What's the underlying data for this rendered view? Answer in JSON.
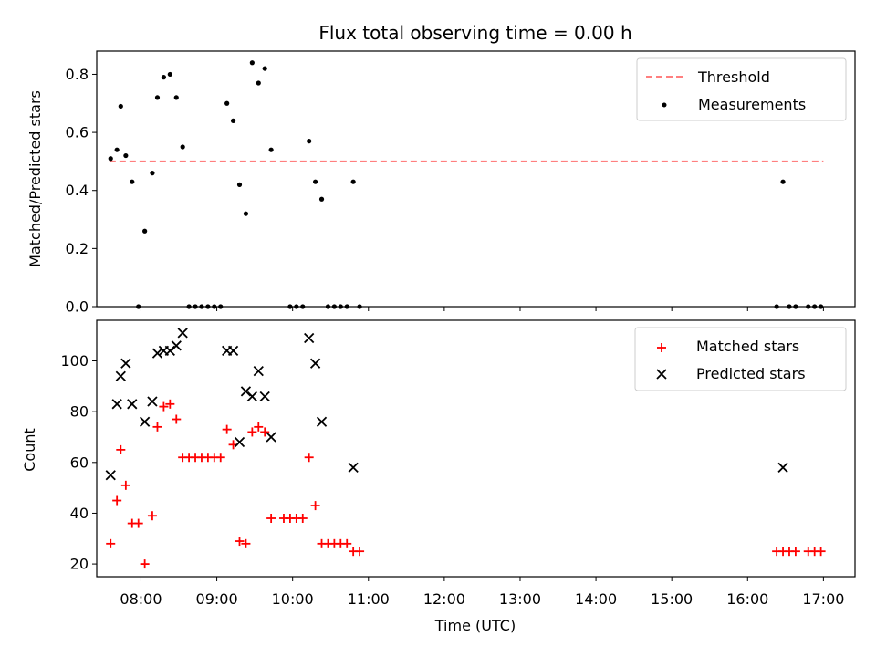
{
  "chart_data": [
    {
      "type": "scatter",
      "title": "Flux total observing time = 0.00 h",
      "xlabel": "",
      "ylabel": "Matched/Predicted stars",
      "xlim": [
        "07:25",
        "17:25"
      ],
      "ylim": [
        0,
        0.88
      ],
      "yticks": [
        "0.0",
        "0.2",
        "0.4",
        "0.6",
        "0.8"
      ],
      "legend_position": "top-right",
      "series": [
        {
          "name": "Threshold",
          "style": "dashed-line",
          "color": "#ff7f7f",
          "points": [
            [
              "07:35",
              0.5
            ],
            [
              "17:00",
              0.5
            ]
          ]
        },
        {
          "name": "Measurements",
          "style": "dot",
          "color": "#000000",
          "points": [
            [
              "07:36",
              0.51
            ],
            [
              "07:41",
              0.54
            ],
            [
              "07:44",
              0.69
            ],
            [
              "07:48",
              0.52
            ],
            [
              "07:53",
              0.43
            ],
            [
              "07:58",
              0.0
            ],
            [
              "08:03",
              0.26
            ],
            [
              "08:09",
              0.46
            ],
            [
              "08:13",
              0.72
            ],
            [
              "08:18",
              0.79
            ],
            [
              "08:23",
              0.8
            ],
            [
              "08:28",
              0.72
            ],
            [
              "08:33",
              0.55
            ],
            [
              "08:38",
              0.0
            ],
            [
              "08:43",
              0.0
            ],
            [
              "08:48",
              0.0
            ],
            [
              "08:53",
              0.0
            ],
            [
              "08:58",
              0.0
            ],
            [
              "09:03",
              0.0
            ],
            [
              "09:08",
              0.7
            ],
            [
              "09:13",
              0.64
            ],
            [
              "09:18",
              0.42
            ],
            [
              "09:23",
              0.32
            ],
            [
              "09:28",
              0.84
            ],
            [
              "09:33",
              0.77
            ],
            [
              "09:38",
              0.82
            ],
            [
              "09:43",
              0.54
            ],
            [
              "09:58",
              0.0
            ],
            [
              "10:03",
              0.0
            ],
            [
              "10:08",
              0.0
            ],
            [
              "10:13",
              0.57
            ],
            [
              "10:18",
              0.43
            ],
            [
              "10:23",
              0.37
            ],
            [
              "10:28",
              0.0
            ],
            [
              "10:33",
              0.0
            ],
            [
              "10:38",
              0.0
            ],
            [
              "10:43",
              0.0
            ],
            [
              "10:48",
              0.43
            ],
            [
              "10:53",
              0.0
            ],
            [
              "16:23",
              0.0
            ],
            [
              "16:28",
              0.43
            ],
            [
              "16:33",
              0.0
            ],
            [
              "16:38",
              0.0
            ],
            [
              "16:48",
              0.0
            ],
            [
              "16:53",
              0.0
            ],
            [
              "16:58",
              0.0
            ]
          ]
        }
      ]
    },
    {
      "type": "scatter",
      "title": "",
      "xlabel": "Time (UTC)",
      "ylabel": "Count",
      "xlim": [
        "07:25",
        "17:25"
      ],
      "ylim": [
        15,
        116
      ],
      "xticks": [
        "08:00",
        "09:00",
        "10:00",
        "11:00",
        "12:00",
        "13:00",
        "14:00",
        "15:00",
        "16:00",
        "17:00"
      ],
      "yticks": [
        "20",
        "40",
        "60",
        "80",
        "100"
      ],
      "legend_position": "top-right",
      "series": [
        {
          "name": "Matched stars",
          "style": "plus",
          "color": "#ff0000",
          "points": [
            [
              "07:36",
              28
            ],
            [
              "07:41",
              45
            ],
            [
              "07:44",
              65
            ],
            [
              "07:48",
              51
            ],
            [
              "07:53",
              36
            ],
            [
              "07:58",
              36
            ],
            [
              "08:03",
              20
            ],
            [
              "08:09",
              39
            ],
            [
              "08:13",
              74
            ],
            [
              "08:18",
              82
            ],
            [
              "08:23",
              83
            ],
            [
              "08:28",
              77
            ],
            [
              "08:33",
              62
            ],
            [
              "08:38",
              62
            ],
            [
              "08:43",
              62
            ],
            [
              "08:48",
              62
            ],
            [
              "08:53",
              62
            ],
            [
              "08:58",
              62
            ],
            [
              "09:03",
              62
            ],
            [
              "09:08",
              73
            ],
            [
              "09:13",
              67
            ],
            [
              "09:18",
              29
            ],
            [
              "09:23",
              28
            ],
            [
              "09:28",
              72
            ],
            [
              "09:33",
              74
            ],
            [
              "09:38",
              72
            ],
            [
              "09:43",
              38
            ],
            [
              "09:53",
              38
            ],
            [
              "09:58",
              38
            ],
            [
              "10:03",
              38
            ],
            [
              "10:08",
              38
            ],
            [
              "10:13",
              62
            ],
            [
              "10:18",
              43
            ],
            [
              "10:23",
              28
            ],
            [
              "10:28",
              28
            ],
            [
              "10:33",
              28
            ],
            [
              "10:38",
              28
            ],
            [
              "10:43",
              28
            ],
            [
              "10:48",
              25
            ],
            [
              "10:53",
              25
            ],
            [
              "16:23",
              25
            ],
            [
              "16:28",
              25
            ],
            [
              "16:33",
              25
            ],
            [
              "16:38",
              25
            ],
            [
              "16:48",
              25
            ],
            [
              "16:53",
              25
            ],
            [
              "16:58",
              25
            ]
          ]
        },
        {
          "name": "Predicted stars",
          "style": "cross",
          "color": "#000000",
          "points": [
            [
              "07:36",
              55
            ],
            [
              "07:41",
              83
            ],
            [
              "07:44",
              94
            ],
            [
              "07:48",
              99
            ],
            [
              "07:53",
              83
            ],
            [
              "08:03",
              76
            ],
            [
              "08:09",
              84
            ],
            [
              "08:13",
              103
            ],
            [
              "08:18",
              104
            ],
            [
              "08:23",
              104
            ],
            [
              "08:28",
              106
            ],
            [
              "08:33",
              111
            ],
            [
              "09:08",
              104
            ],
            [
              "09:13",
              104
            ],
            [
              "09:18",
              68
            ],
            [
              "09:23",
              88
            ],
            [
              "09:28",
              86
            ],
            [
              "09:33",
              96
            ],
            [
              "09:38",
              86
            ],
            [
              "09:43",
              70
            ],
            [
              "10:13",
              109
            ],
            [
              "10:18",
              99
            ],
            [
              "10:23",
              76
            ],
            [
              "10:48",
              58
            ],
            [
              "16:28",
              58
            ]
          ]
        }
      ]
    }
  ]
}
